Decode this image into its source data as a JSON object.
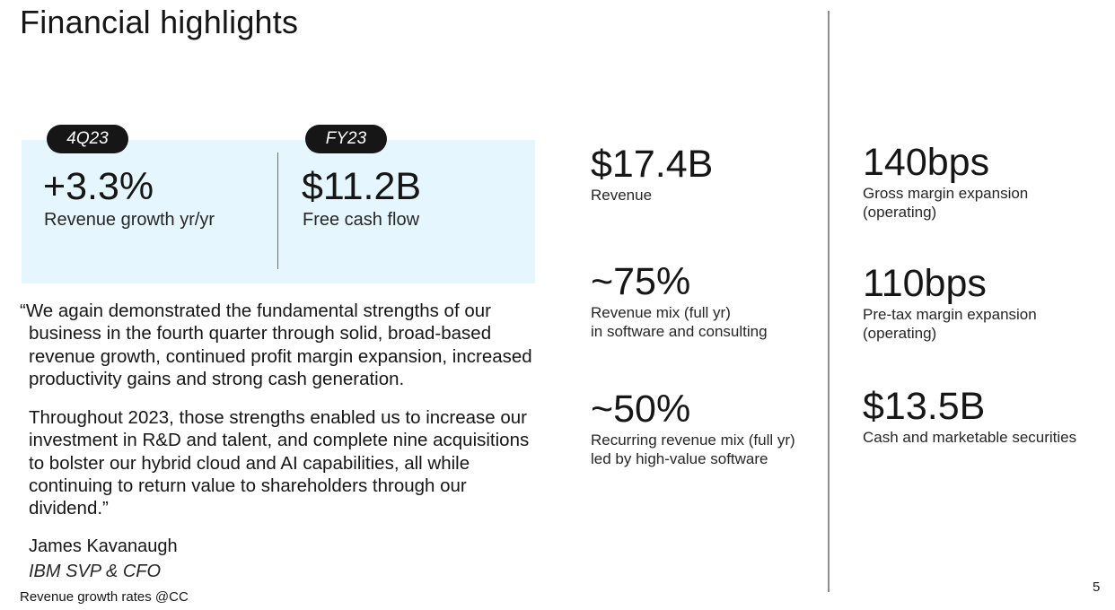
{
  "title": "Financial highlights",
  "kpis": [
    {
      "badge": "4Q23",
      "value": "+3.3%",
      "label": "Revenue growth yr/yr"
    },
    {
      "badge": "FY23",
      "value": "$11.2B",
      "label": "Free cash flow"
    }
  ],
  "quote": {
    "paragraph1": "“We again demonstrated the fundamental strengths of our business in the fourth quarter through solid, broad-based revenue growth, continued profit margin expansion, increased productivity gains and strong cash generation.",
    "paragraph2": "Throughout 2023, those strengths enabled us to increase our investment in R&D and talent, and complete nine acquisitions to bolster our hybrid cloud and AI capabilities, all while continuing to return value to shareholders through our dividend.”",
    "author": "James Kavanaugh",
    "role": "IBM SVP & CFO"
  },
  "footnote": "Revenue growth rates @CC",
  "metrics": [
    {
      "value": "$17.4B",
      "label": "Revenue"
    },
    {
      "value": "~75%",
      "label": "Revenue mix (full yr)\nin software and consulting"
    },
    {
      "value": "~50%",
      "label": "Recurring revenue mix (full yr)\nled by high-value software"
    },
    {
      "value": "140bps",
      "label": "Gross margin expansion\n(operating)"
    },
    {
      "value": "110bps",
      "label": "Pre-tax margin expansion\n(operating)"
    },
    {
      "value": "$13.5B",
      "label": "Cash and marketable securities"
    }
  ],
  "page_number": "5",
  "colors": {
    "kpi_background": "#e5f6ff",
    "badge_background": "#161616",
    "text": "#161616"
  }
}
